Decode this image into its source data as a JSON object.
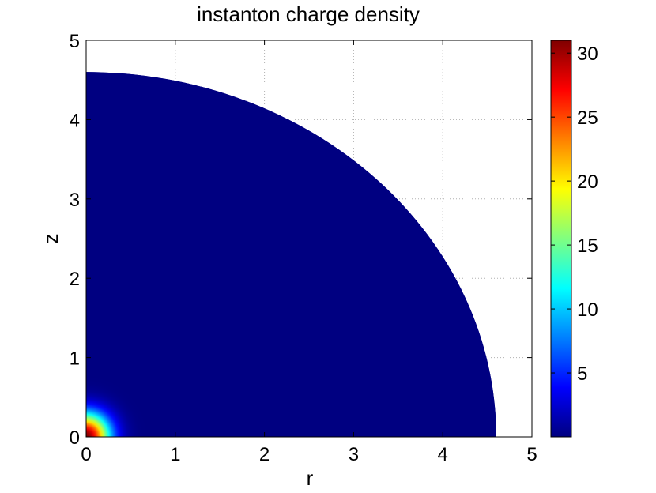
{
  "chart_data": {
    "type": "heatmap",
    "title": "instanton charge density",
    "xlabel": "r",
    "ylabel": "z",
    "xlim": [
      0,
      5
    ],
    "ylim": [
      0,
      5
    ],
    "xticks": [
      "0",
      "1",
      "2",
      "3",
      "4",
      "5"
    ],
    "yticks": [
      "0",
      "1",
      "2",
      "3",
      "4",
      "5"
    ],
    "grid": true,
    "colormap": "jet",
    "domain": {
      "shape": "quarter-disk",
      "radius": 4.6
    },
    "peak": {
      "r": 0,
      "z": 0,
      "value": 31
    },
    "falloff_scale": 0.26,
    "colorbar": {
      "range": [
        0,
        31
      ],
      "ticks": [
        "5",
        "10",
        "15",
        "20",
        "25",
        "30"
      ],
      "tick_values": [
        5,
        10,
        15,
        20,
        25,
        30
      ],
      "placement": "right"
    }
  }
}
